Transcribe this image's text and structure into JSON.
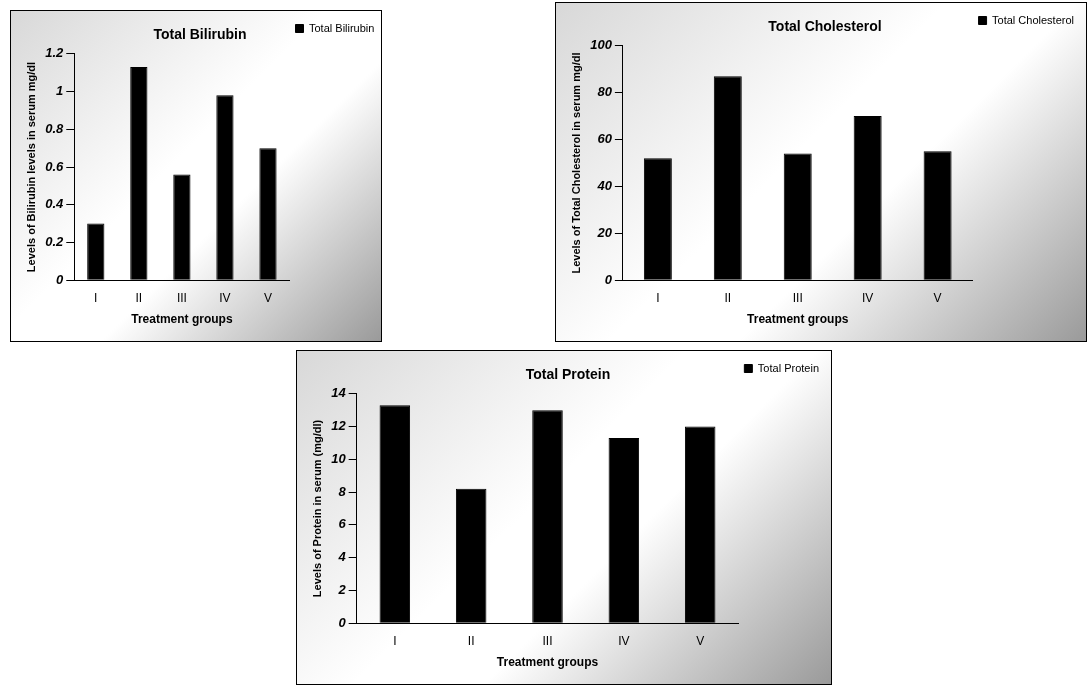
{
  "chart_data": [
    {
      "type": "bar",
      "title": "Total Bilirubin",
      "xlabel": "Treatment groups",
      "ylabel": "Levels of Bilirubin levels in serum mg/dl",
      "categories": [
        "I",
        "II",
        "III",
        "IV",
        "V"
      ],
      "series": [
        {
          "name": "Total Bilirubin",
          "color": "#000000",
          "values": [
            0.3,
            1.13,
            0.56,
            0.98,
            0.7
          ]
        }
      ],
      "ylim": [
        0,
        1.2
      ],
      "yticks": [
        0,
        0.2,
        0.4,
        0.6,
        0.8,
        1,
        1.2
      ],
      "legend": "top right"
    },
    {
      "type": "bar",
      "title": "Total Cholesterol",
      "xlabel": "Treatment groups",
      "ylabel": "Levels of Total Cholesterol in serum mg/dl",
      "categories": [
        "I",
        "II",
        "III",
        "IV",
        "V"
      ],
      "series": [
        {
          "name": "Total Cholesterol",
          "color": "#000000",
          "values": [
            52,
            87,
            54,
            70,
            55
          ]
        }
      ],
      "ylim": [
        0,
        100
      ],
      "yticks": [
        0,
        20,
        40,
        60,
        80,
        100
      ],
      "legend": "top right"
    },
    {
      "type": "bar",
      "title": "Total Protein",
      "xlabel": "Treatment groups",
      "ylabel": "Levels of Protein in serum (mg/dl)",
      "categories": [
        "I",
        "II",
        "III",
        "IV",
        "V"
      ],
      "series": [
        {
          "name": "Total Protein",
          "color": "#000000",
          "values": [
            13.3,
            8.2,
            13,
            11.3,
            12
          ]
        }
      ],
      "ylim": [
        0,
        14
      ],
      "yticks": [
        0,
        2,
        4,
        6,
        8,
        10,
        12,
        14
      ],
      "legend": "top right"
    }
  ]
}
